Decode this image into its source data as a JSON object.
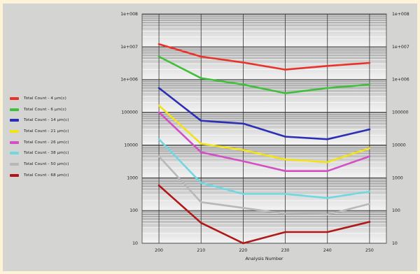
{
  "chart_data": {
    "type": "line",
    "x": [
      200,
      210,
      220,
      230,
      240,
      250
    ],
    "xlabel": "Analysis Number",
    "ylabel": "",
    "yscale": "log",
    "ylim": [
      10,
      100000000
    ],
    "y_tick_labels": [
      "10",
      "100",
      "1000",
      "10000",
      "100000",
      "1e+006",
      "1e+007",
      "1e+008"
    ],
    "x_tick_labels": [
      "200",
      "210",
      "220",
      "230",
      "240",
      "250"
    ],
    "series": [
      {
        "name": "Total Count - 4 μm(c)",
        "color": "#e8322a",
        "values": [
          12000000,
          5000000,
          3300000,
          2000000,
          2600000,
          3200000
        ]
      },
      {
        "name": "Total Count - 6 μm(c)",
        "color": "#3fbf3a",
        "values": [
          5000000,
          1100000,
          700000,
          380000,
          550000,
          700000
        ]
      },
      {
        "name": "Total Count - 14 μm(c)",
        "color": "#2c2fb5",
        "values": [
          550000,
          55000,
          45000,
          18000,
          15000,
          30000
        ]
      },
      {
        "name": "Total Count - 21 μm(c)",
        "color": "#f2e21a",
        "values": [
          160000,
          11000,
          7000,
          3600,
          3000,
          8000
        ]
      },
      {
        "name": "Total Count - 26 μm(c)",
        "color": "#d24fc6",
        "values": [
          100000,
          6000,
          3200,
          1600,
          1600,
          4500
        ]
      },
      {
        "name": "Total Count - 38 μm(c)",
        "color": "#6fd8e0",
        "values": [
          15000,
          700,
          320,
          320,
          240,
          380
        ]
      },
      {
        "name": "Total Count - 50 μm(c)",
        "color": "#b8b8b8",
        "values": [
          4500,
          180,
          120,
          80,
          75,
          160
        ]
      },
      {
        "name": "Total Count - 68 μm(c)",
        "color": "#b01818",
        "values": [
          580,
          42,
          10,
          22,
          22,
          45
        ]
      }
    ],
    "grid": true,
    "legend_position": "left"
  }
}
